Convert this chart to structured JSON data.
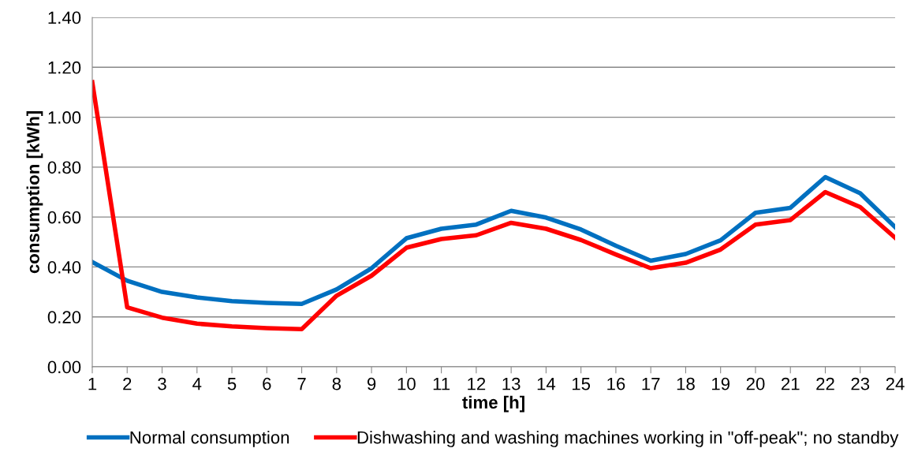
{
  "chart_data": {
    "type": "line",
    "xlabel": "time [h]",
    "ylabel": "consumption [kWh]",
    "x": [
      1,
      2,
      3,
      4,
      5,
      6,
      7,
      8,
      9,
      10,
      11,
      12,
      13,
      14,
      15,
      16,
      17,
      18,
      19,
      20,
      21,
      22,
      23,
      24
    ],
    "series": [
      {
        "name": "Normal consumption",
        "color": "#0070c0",
        "values": [
          0.42,
          0.345,
          0.3,
          0.278,
          0.263,
          0.256,
          0.252,
          0.31,
          0.395,
          0.515,
          0.553,
          0.57,
          0.625,
          0.598,
          0.55,
          0.485,
          0.425,
          0.452,
          0.507,
          0.617,
          0.637,
          0.76,
          0.695,
          0.56
        ]
      },
      {
        "name": "Dishwashing and washing machines working in \"off-peak\"; no standby",
        "color": "#ff0000",
        "values": [
          1.14,
          0.238,
          0.197,
          0.173,
          0.162,
          0.155,
          0.151,
          0.285,
          0.365,
          0.477,
          0.512,
          0.527,
          0.577,
          0.553,
          0.508,
          0.45,
          0.395,
          0.417,
          0.47,
          0.57,
          0.588,
          0.7,
          0.64,
          0.517
        ]
      }
    ],
    "xlim": [
      1,
      24
    ],
    "xticks": [
      1,
      2,
      3,
      4,
      5,
      6,
      7,
      8,
      9,
      10,
      11,
      12,
      13,
      14,
      15,
      16,
      17,
      18,
      19,
      20,
      21,
      22,
      23,
      24
    ],
    "ylim": [
      0,
      1.4
    ],
    "yticks": [
      {
        "value": 0,
        "label": "0.00"
      },
      {
        "value": 0.2,
        "label": "0.20"
      },
      {
        "value": 0.4,
        "label": "0.40"
      },
      {
        "value": 0.6,
        "label": "0.60"
      },
      {
        "value": 0.8,
        "label": "0.80"
      },
      {
        "value": 1.0,
        "label": "1.00"
      },
      {
        "value": 1.2,
        "label": "1.20"
      },
      {
        "value": 1.4,
        "label": "1.40"
      }
    ],
    "grid": "y",
    "legend": "bottom",
    "marker": "none",
    "line_style": "solid"
  }
}
